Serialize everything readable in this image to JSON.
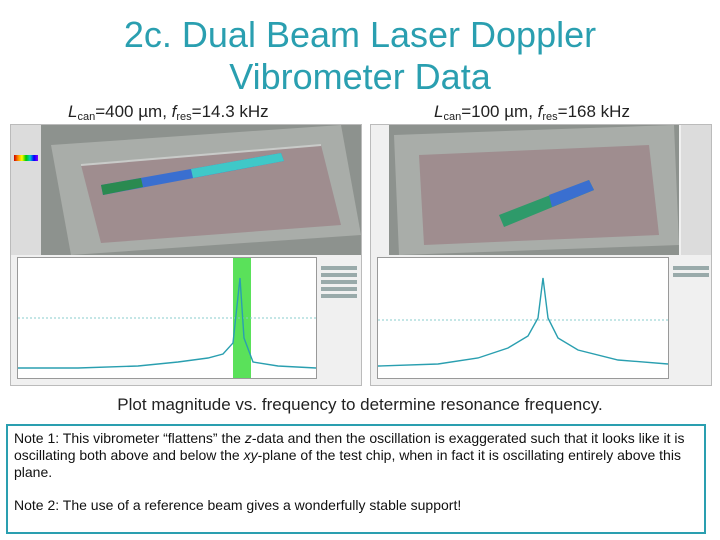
{
  "slide": {
    "title_line1": "2c. Dual Beam Laser Doppler",
    "title_line2": "Vibrometer Data",
    "left_caption": {
      "L": "L",
      "sub1": "can",
      "mid": "=400 µm, ",
      "f": "f",
      "sub2": "res",
      "end": "=14.3 kHz"
    },
    "right_caption": {
      "L": "L",
      "sub1": "can",
      "mid": "=100 µm, ",
      "f": "f",
      "sub2": "res",
      "end": "=168 kHz"
    },
    "subtitle": "Plot magnitude vs. frequency to determine resonance frequency.",
    "note1_a": "Note 1: This vibrometer “flattens” the ",
    "note1_z": "z",
    "note1_b": "-data and then the oscillation is exaggerated such that it looks like it is oscillating both above and below the ",
    "note1_xy": "xy",
    "note1_c": "-plane of the test chip, when in fact it is oscillating entirely above this plane.",
    "note2": "Note 2: The use of a reference beam gives a wonderfully stable support!"
  },
  "colors": {
    "title": "#2a9fb0",
    "peak_band": "#3ddc3d",
    "trace": "#2a9fb0",
    "border": "#2a9fb0"
  }
}
